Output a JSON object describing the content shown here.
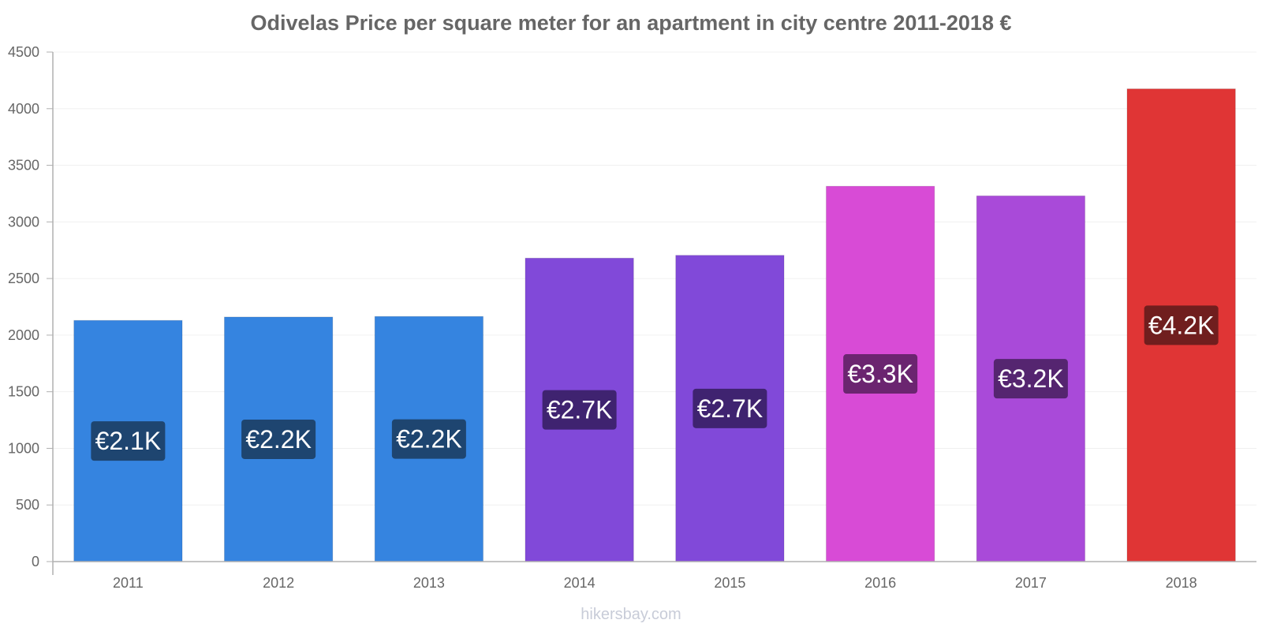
{
  "chart_data": {
    "type": "bar",
    "title": "Odivelas Price per square meter for an apartment in city centre 2011-2018 €",
    "categories": [
      "2011",
      "2012",
      "2013",
      "2014",
      "2015",
      "2016",
      "2017",
      "2018"
    ],
    "values": [
      2130,
      2160,
      2165,
      2680,
      2705,
      3315,
      3230,
      4175
    ],
    "data_labels": [
      "€2.1K",
      "€2.2K",
      "€2.2K",
      "€2.7K",
      "€2.7K",
      "€3.3K",
      "€3.2K",
      "€4.2K"
    ],
    "bar_colors": [
      "#3584e0",
      "#3584e0",
      "#3584e0",
      "#8149d9",
      "#8149d9",
      "#d84bd6",
      "#a94ad9",
      "#e03535"
    ],
    "label_colors": [
      "#1e4570",
      "#1e4570",
      "#1e4570",
      "#3f2370",
      "#3f2370",
      "#6b2570",
      "#552570",
      "#701e1e"
    ],
    "y_ticks": [
      0,
      500,
      1000,
      1500,
      2000,
      2500,
      3000,
      3500,
      4000,
      4500
    ],
    "ylim": [
      0,
      4500
    ],
    "xlabel": "",
    "ylabel": "",
    "grid": true,
    "legend": "none"
  },
  "watermark": "hikersbay.com"
}
